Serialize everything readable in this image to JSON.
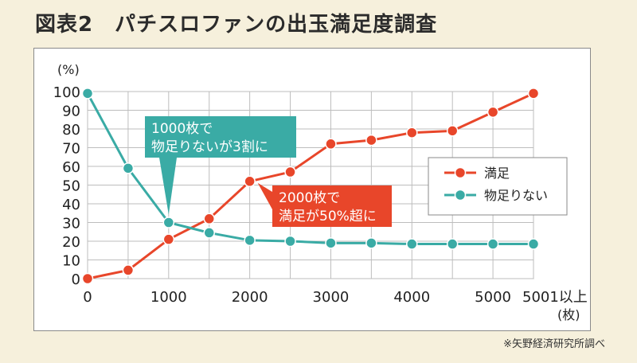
{
  "title": "図表2　パチスロファンの出玉満足度調査",
  "source_note": "※矢野経済研究所調べ",
  "chart_data": {
    "type": "line",
    "title": "図表2　パチスロファンの出玉満足度調査",
    "ylabel": "(%)",
    "xunit": "(枚)",
    "ylim": [
      0,
      100
    ],
    "yticks": [
      0,
      10,
      20,
      30,
      40,
      50,
      60,
      70,
      80,
      90,
      100
    ],
    "xticks": [
      "0",
      "1000",
      "2000",
      "3000",
      "4000",
      "5000",
      "5001以上"
    ],
    "x": [
      0,
      500,
      1000,
      1500,
      2000,
      2500,
      3000,
      3500,
      4000,
      4500,
      5000,
      5500
    ],
    "grid": true,
    "legend_position": "right",
    "series": [
      {
        "name": "満足",
        "color": "#e8462a",
        "values": [
          0,
          4.5,
          21,
          32,
          52,
          57,
          72,
          74,
          78,
          79,
          89,
          99
        ]
      },
      {
        "name": "物足りない",
        "color": "#3aaba5",
        "values": [
          99,
          59,
          30,
          24.5,
          20.5,
          20,
          19,
          19,
          18.5,
          18.5,
          18.5,
          18.5
        ]
      }
    ],
    "annotations": [
      {
        "series": "物足りない",
        "x": 1000,
        "lines": [
          "1000枚で",
          "物足りないが3割に"
        ],
        "color": "#3aaba5"
      },
      {
        "series": "満足",
        "x": 2000,
        "lines": [
          "2000枚で",
          "満足が50%超に"
        ],
        "color": "#e8462a"
      }
    ]
  }
}
